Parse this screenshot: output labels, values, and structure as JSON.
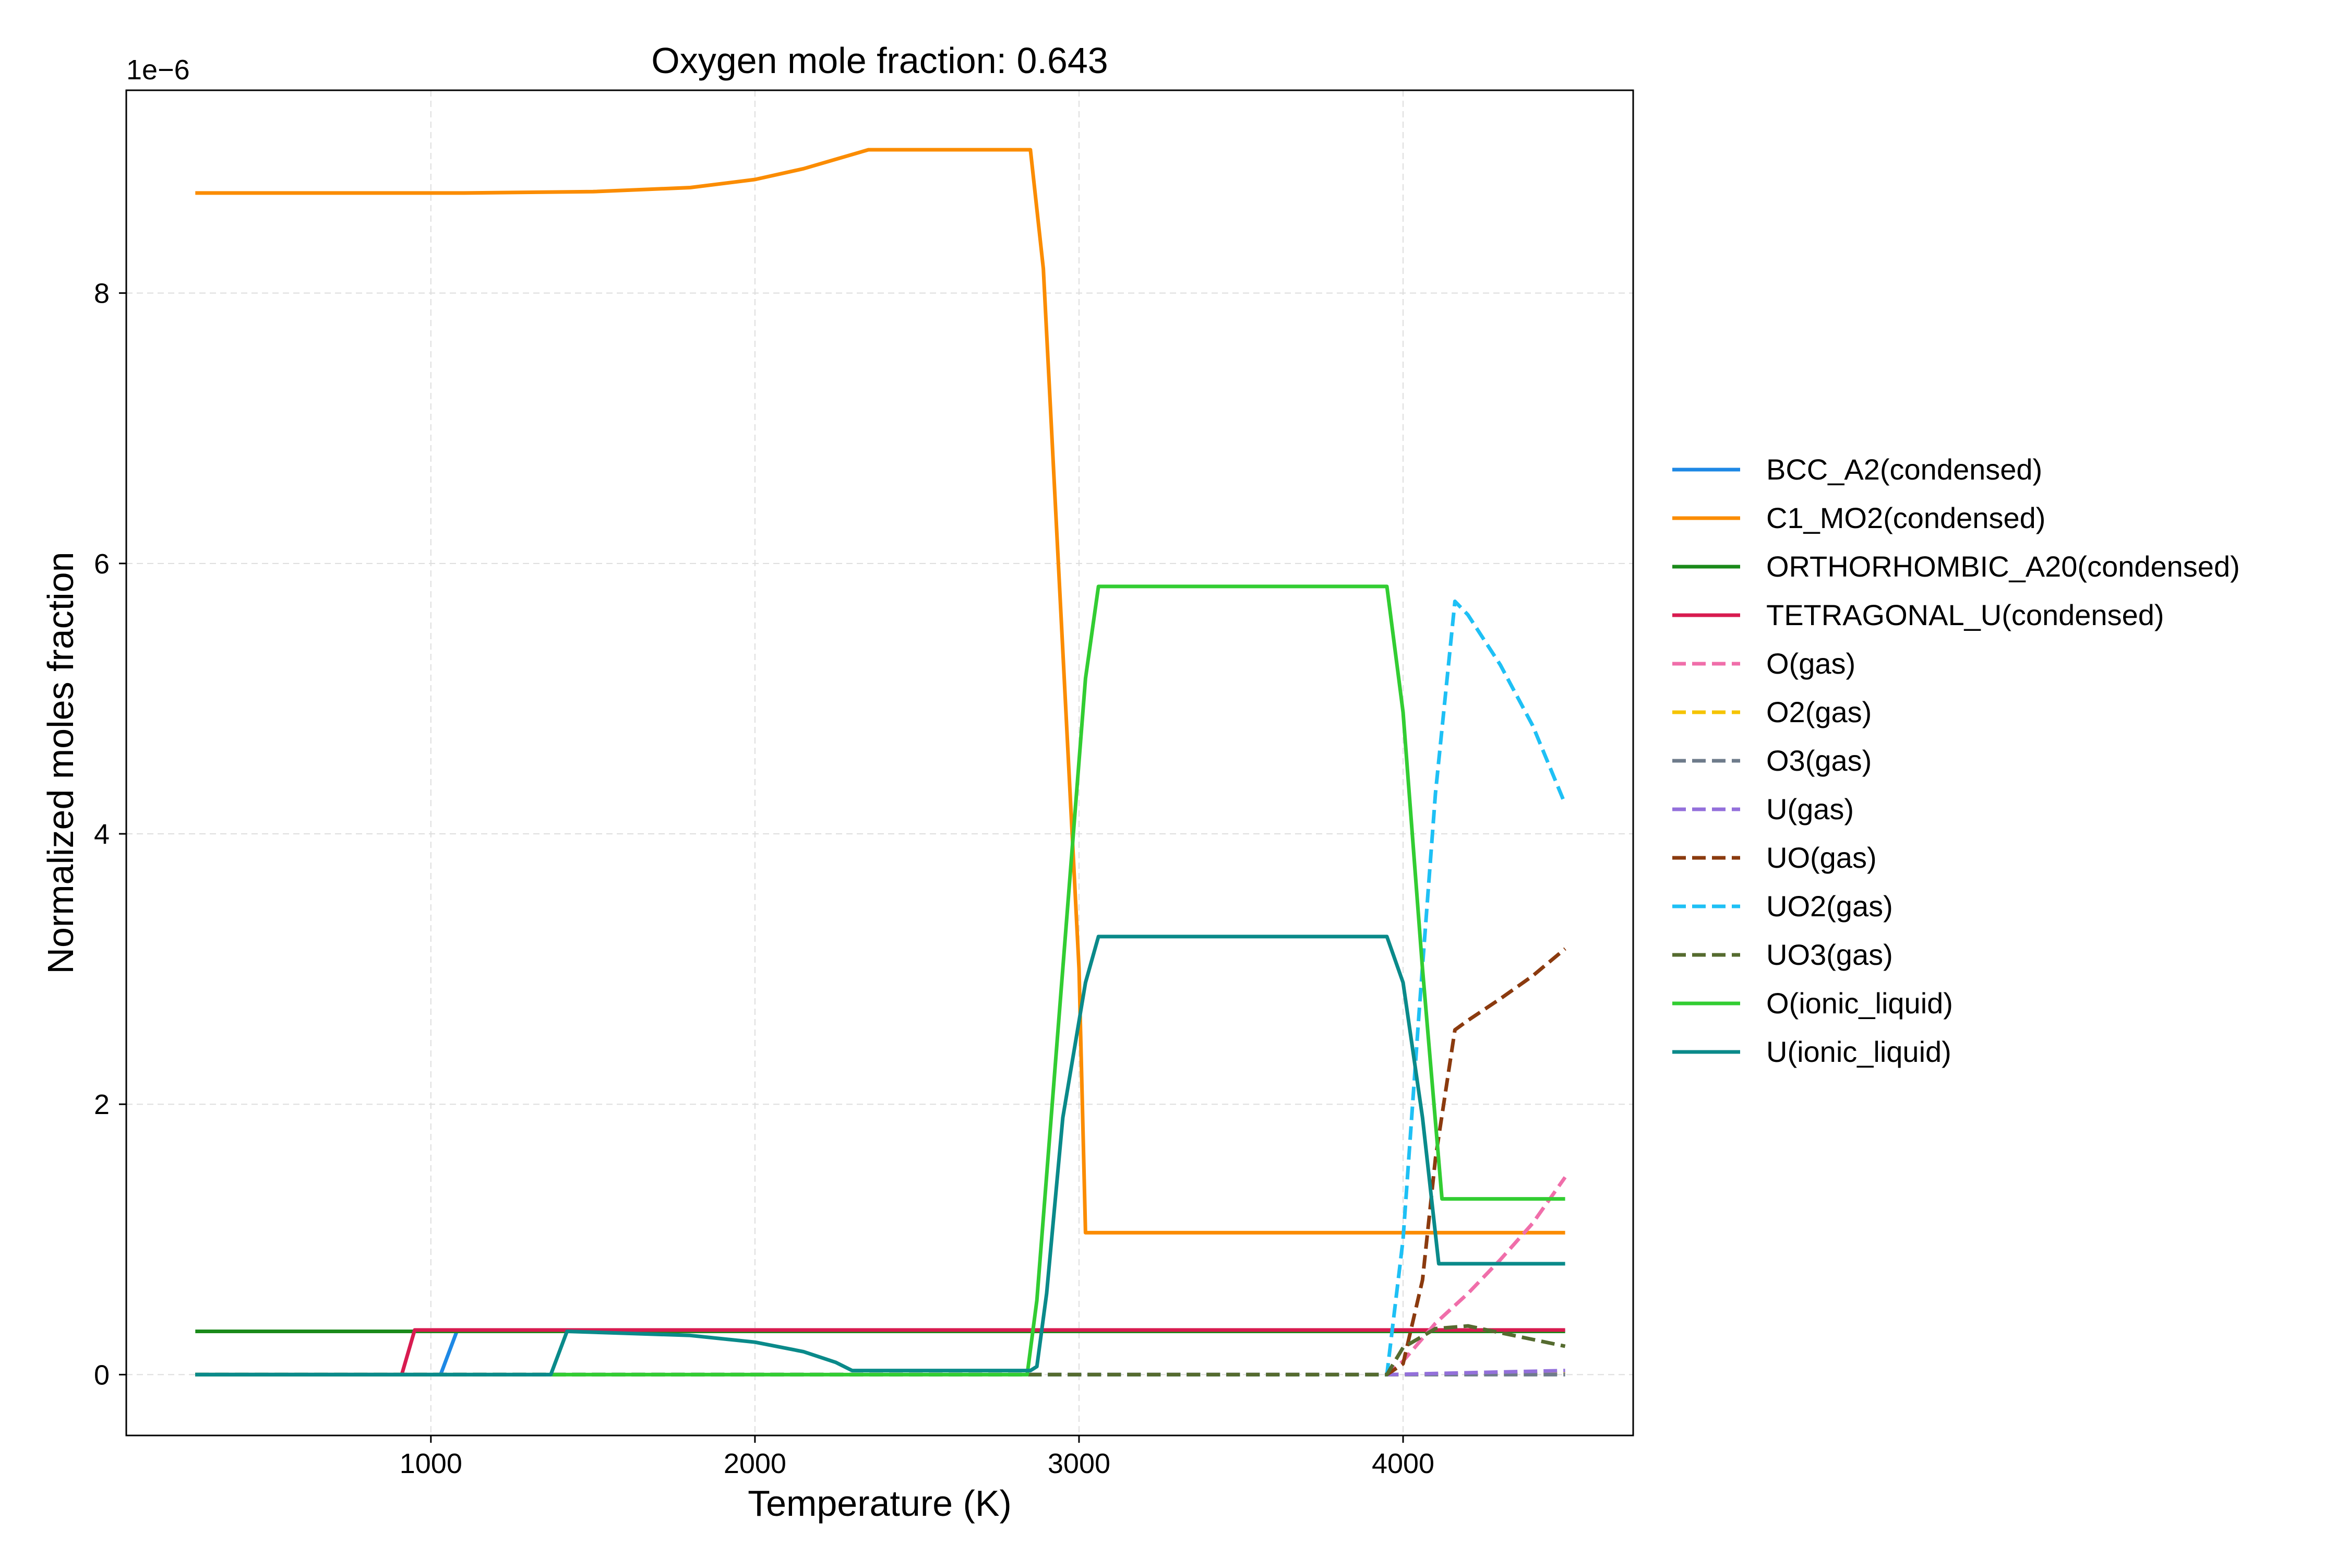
{
  "chart_data": {
    "type": "line",
    "title": "Oxygen mole fraction: 0.643",
    "xlabel": "Temperature (K)",
    "ylabel": "Normalized moles fraction",
    "y_offset_text": "1e−6",
    "y_scale_factor": 1e-06,
    "xlim": [
      60,
      4710
    ],
    "ylim": [
      -0.45,
      9.5
    ],
    "x_ticks": [
      1000,
      2000,
      3000,
      4000
    ],
    "x_tick_labels": [
      "1000",
      "2000",
      "3000",
      "4000"
    ],
    "y_ticks": [
      0,
      2,
      4,
      6,
      8
    ],
    "y_tick_labels": [
      "0",
      "2",
      "4",
      "6",
      "8"
    ],
    "grid": true,
    "legend_position": "outside right",
    "series": [
      {
        "name": "BCC_A2(condensed)",
        "color": "#1e88e5",
        "dash": "solid",
        "x": [
          273,
          1030,
          1080,
          4500
        ],
        "y": [
          0,
          0,
          0.32,
          0.32
        ]
      },
      {
        "name": "C1_MO2(condensed)",
        "color": "#fb8c00",
        "dash": "solid",
        "x": [
          273,
          1100,
          1500,
          1800,
          2000,
          2150,
          2250,
          2350,
          2850,
          2890,
          3000,
          3020,
          4500
        ],
        "y": [
          8.74,
          8.74,
          8.75,
          8.78,
          8.84,
          8.92,
          8.99,
          9.06,
          9.06,
          8.18,
          3.0,
          1.05,
          1.05
        ]
      },
      {
        "name": "ORTHORHOMBIC_A20(condensed)",
        "color": "#1a8a1a",
        "dash": "solid",
        "x": [
          273,
          4500
        ],
        "y": [
          0.32,
          0.32
        ]
      },
      {
        "name": "TETRAGONAL_U(condensed)",
        "color": "#d81b50",
        "dash": "solid",
        "x": [
          273,
          910,
          950,
          4500
        ],
        "y": [
          0,
          0,
          0.33,
          0.33
        ]
      },
      {
        "name": "O(gas)",
        "color": "#f06eaa",
        "dash": "dashed",
        "x": [
          273,
          3950,
          4000,
          4100,
          4200,
          4300,
          4400,
          4500
        ],
        "y": [
          0,
          0,
          0.1,
          0.38,
          0.6,
          0.85,
          1.12,
          1.46
        ]
      },
      {
        "name": "O2(gas)",
        "color": "#f5c400",
        "dash": "dashed",
        "x": [
          273,
          3950,
          4500
        ],
        "y": [
          0,
          0,
          0.01
        ]
      },
      {
        "name": "O3(gas)",
        "color": "#6e7b8b",
        "dash": "dashed",
        "x": [
          273,
          4500
        ],
        "y": [
          0,
          0
        ]
      },
      {
        "name": "U(gas)",
        "color": "#9370db",
        "dash": "dashed",
        "x": [
          273,
          3950,
          4500
        ],
        "y": [
          0,
          0,
          0.03
        ]
      },
      {
        "name": "UO(gas)",
        "color": "#8b3a0e",
        "dash": "dashed",
        "x": [
          273,
          3950,
          4000,
          4060,
          4100,
          4160,
          4200,
          4300,
          4400,
          4500
        ],
        "y": [
          0,
          0,
          0.08,
          0.7,
          1.6,
          2.55,
          2.62,
          2.78,
          2.95,
          3.15
        ]
      },
      {
        "name": "UO2(gas)",
        "color": "#1ec0f5",
        "dash": "dashed",
        "x": [
          273,
          3950,
          4000,
          4050,
          4100,
          4160,
          4200,
          4300,
          4400,
          4500
        ],
        "y": [
          0,
          0,
          1.0,
          2.7,
          4.3,
          5.72,
          5.62,
          5.25,
          4.8,
          4.22
        ]
      },
      {
        "name": "UO3(gas)",
        "color": "#556b2f",
        "dash": "dashed",
        "x": [
          273,
          3950,
          4000,
          4100,
          4200,
          4300,
          4400,
          4500
        ],
        "y": [
          0,
          0,
          0.2,
          0.34,
          0.36,
          0.31,
          0.26,
          0.21
        ]
      },
      {
        "name": "O(ionic_liquid)",
        "color": "#32cd32",
        "dash": "solid",
        "x": [
          273,
          2840,
          2870,
          3020,
          3060,
          3950,
          4000,
          4060,
          4120,
          4500
        ],
        "y": [
          0,
          0,
          0.55,
          5.15,
          5.83,
          5.83,
          4.9,
          3.0,
          1.3,
          1.3
        ]
      },
      {
        "name": "U(ionic_liquid)",
        "color": "#0a8a8a",
        "dash": "solid",
        "x": [
          273,
          1370,
          1420,
          1800,
          2000,
          2150,
          2250,
          2300,
          2850,
          2870,
          2900,
          2950,
          3020,
          3060,
          3950,
          4000,
          4060,
          4110,
          4500
        ],
        "y": [
          0,
          0,
          0.32,
          0.29,
          0.24,
          0.17,
          0.09,
          0.03,
          0.03,
          0.06,
          0.6,
          1.9,
          2.9,
          3.24,
          3.24,
          2.9,
          1.9,
          0.82,
          0.82
        ]
      }
    ]
  }
}
